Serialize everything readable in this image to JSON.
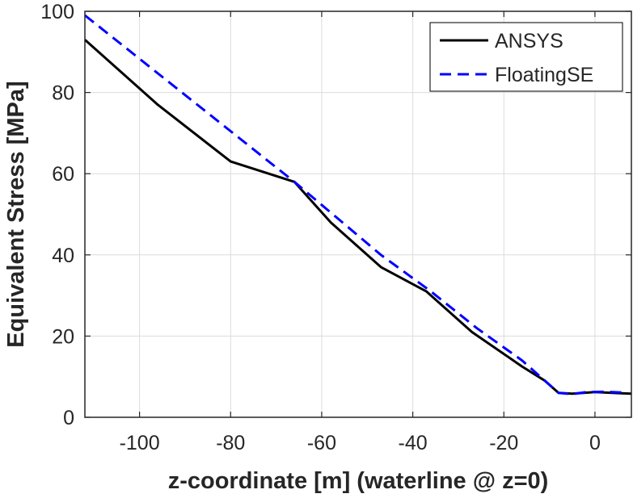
{
  "chart_data": {
    "type": "line",
    "title": "",
    "xlabel": "z-coordinate [m] (waterline @ z=0)",
    "ylabel": "Equivalent Stress [MPa]",
    "xlim": [
      -112,
      8
    ],
    "ylim": [
      0,
      100
    ],
    "xticks": [
      -100,
      -80,
      -60,
      -40,
      -20,
      0
    ],
    "yticks": [
      0,
      20,
      40,
      60,
      80,
      100
    ],
    "grid": true,
    "legend_position": "top-right",
    "series": [
      {
        "name": "ANSYS",
        "color": "#000000",
        "style": "solid",
        "x": [
          -112,
          -96,
          -80,
          -66,
          -58,
          -47,
          -37,
          -27,
          -16,
          -11,
          -8,
          -5,
          0,
          8
        ],
        "y": [
          93,
          77,
          63,
          58,
          48,
          37,
          31,
          21,
          12.5,
          9,
          6,
          5.8,
          6.2,
          5.8
        ]
      },
      {
        "name": "FloatingSE",
        "color": "#0000ff",
        "style": "dashed",
        "x": [
          -112,
          -66,
          -47,
          -36,
          -26,
          -16,
          -8,
          -5,
          -2,
          2,
          6
        ],
        "y": [
          99,
          58,
          40,
          31,
          22,
          14,
          6,
          5.7,
          6.2,
          6.3,
          6.1
        ]
      }
    ]
  }
}
